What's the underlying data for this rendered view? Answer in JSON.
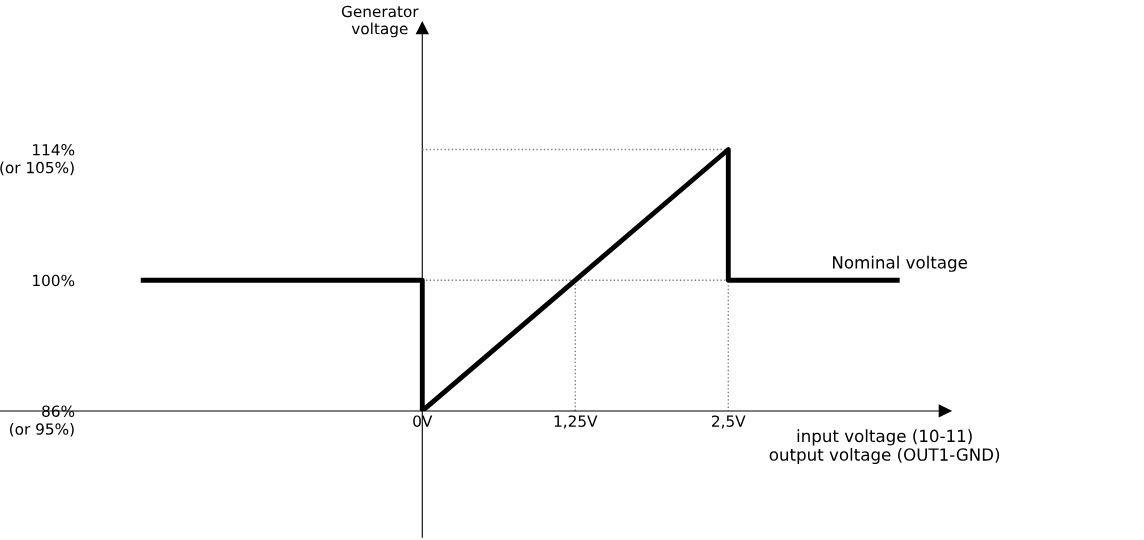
{
  "chart_data": {
    "type": "line",
    "xlabel": "input voltage (10-11)\noutput voltage (OUT1-GND)",
    "ylabel": "Generator\nvoltage",
    "xlim": [
      -3.45,
      4.27
    ],
    "ylim": [
      86,
      127
    ],
    "xticks": [
      {
        "value": 0,
        "label": "0V"
      },
      {
        "value": 1.25,
        "label": "1,25V"
      },
      {
        "value": 2.5,
        "label": "2,5V"
      }
    ],
    "yticks": [
      {
        "value": 86,
        "label": "86%"
      },
      {
        "value": 100,
        "label": "100%"
      },
      {
        "value": 114,
        "label": "114%"
      }
    ],
    "series": [
      {
        "color": "#808080",
        "line_style": "dotted",
        "x": [
          0,
          2.5,
          2.5
        ],
        "values": [
          114,
          114,
          86
        ]
      },
      {
        "color": "#808080",
        "line_style": "dotted",
        "x": [
          0,
          2.5
        ],
        "values": [
          100,
          100
        ]
      },
      {
        "color": "#808080",
        "line_style": "dotted",
        "x": [
          1.25,
          1.25
        ],
        "values": [
          86,
          100
        ]
      },
      {
        "color": "#000000",
        "line_style": "solid",
        "x": [
          -2.3,
          0,
          0,
          2.5,
          2.5,
          3.9
        ],
        "values": [
          100,
          100,
          86,
          114,
          100,
          100
        ]
      }
    ],
    "annotations": [
      {
        "text": "Nominal voltage",
        "x": 3.9,
        "y": 100
      },
      "(or 105%)",
      "(or 95%)"
    ],
    "grid": false,
    "legend": false,
    "marker": "none"
  }
}
